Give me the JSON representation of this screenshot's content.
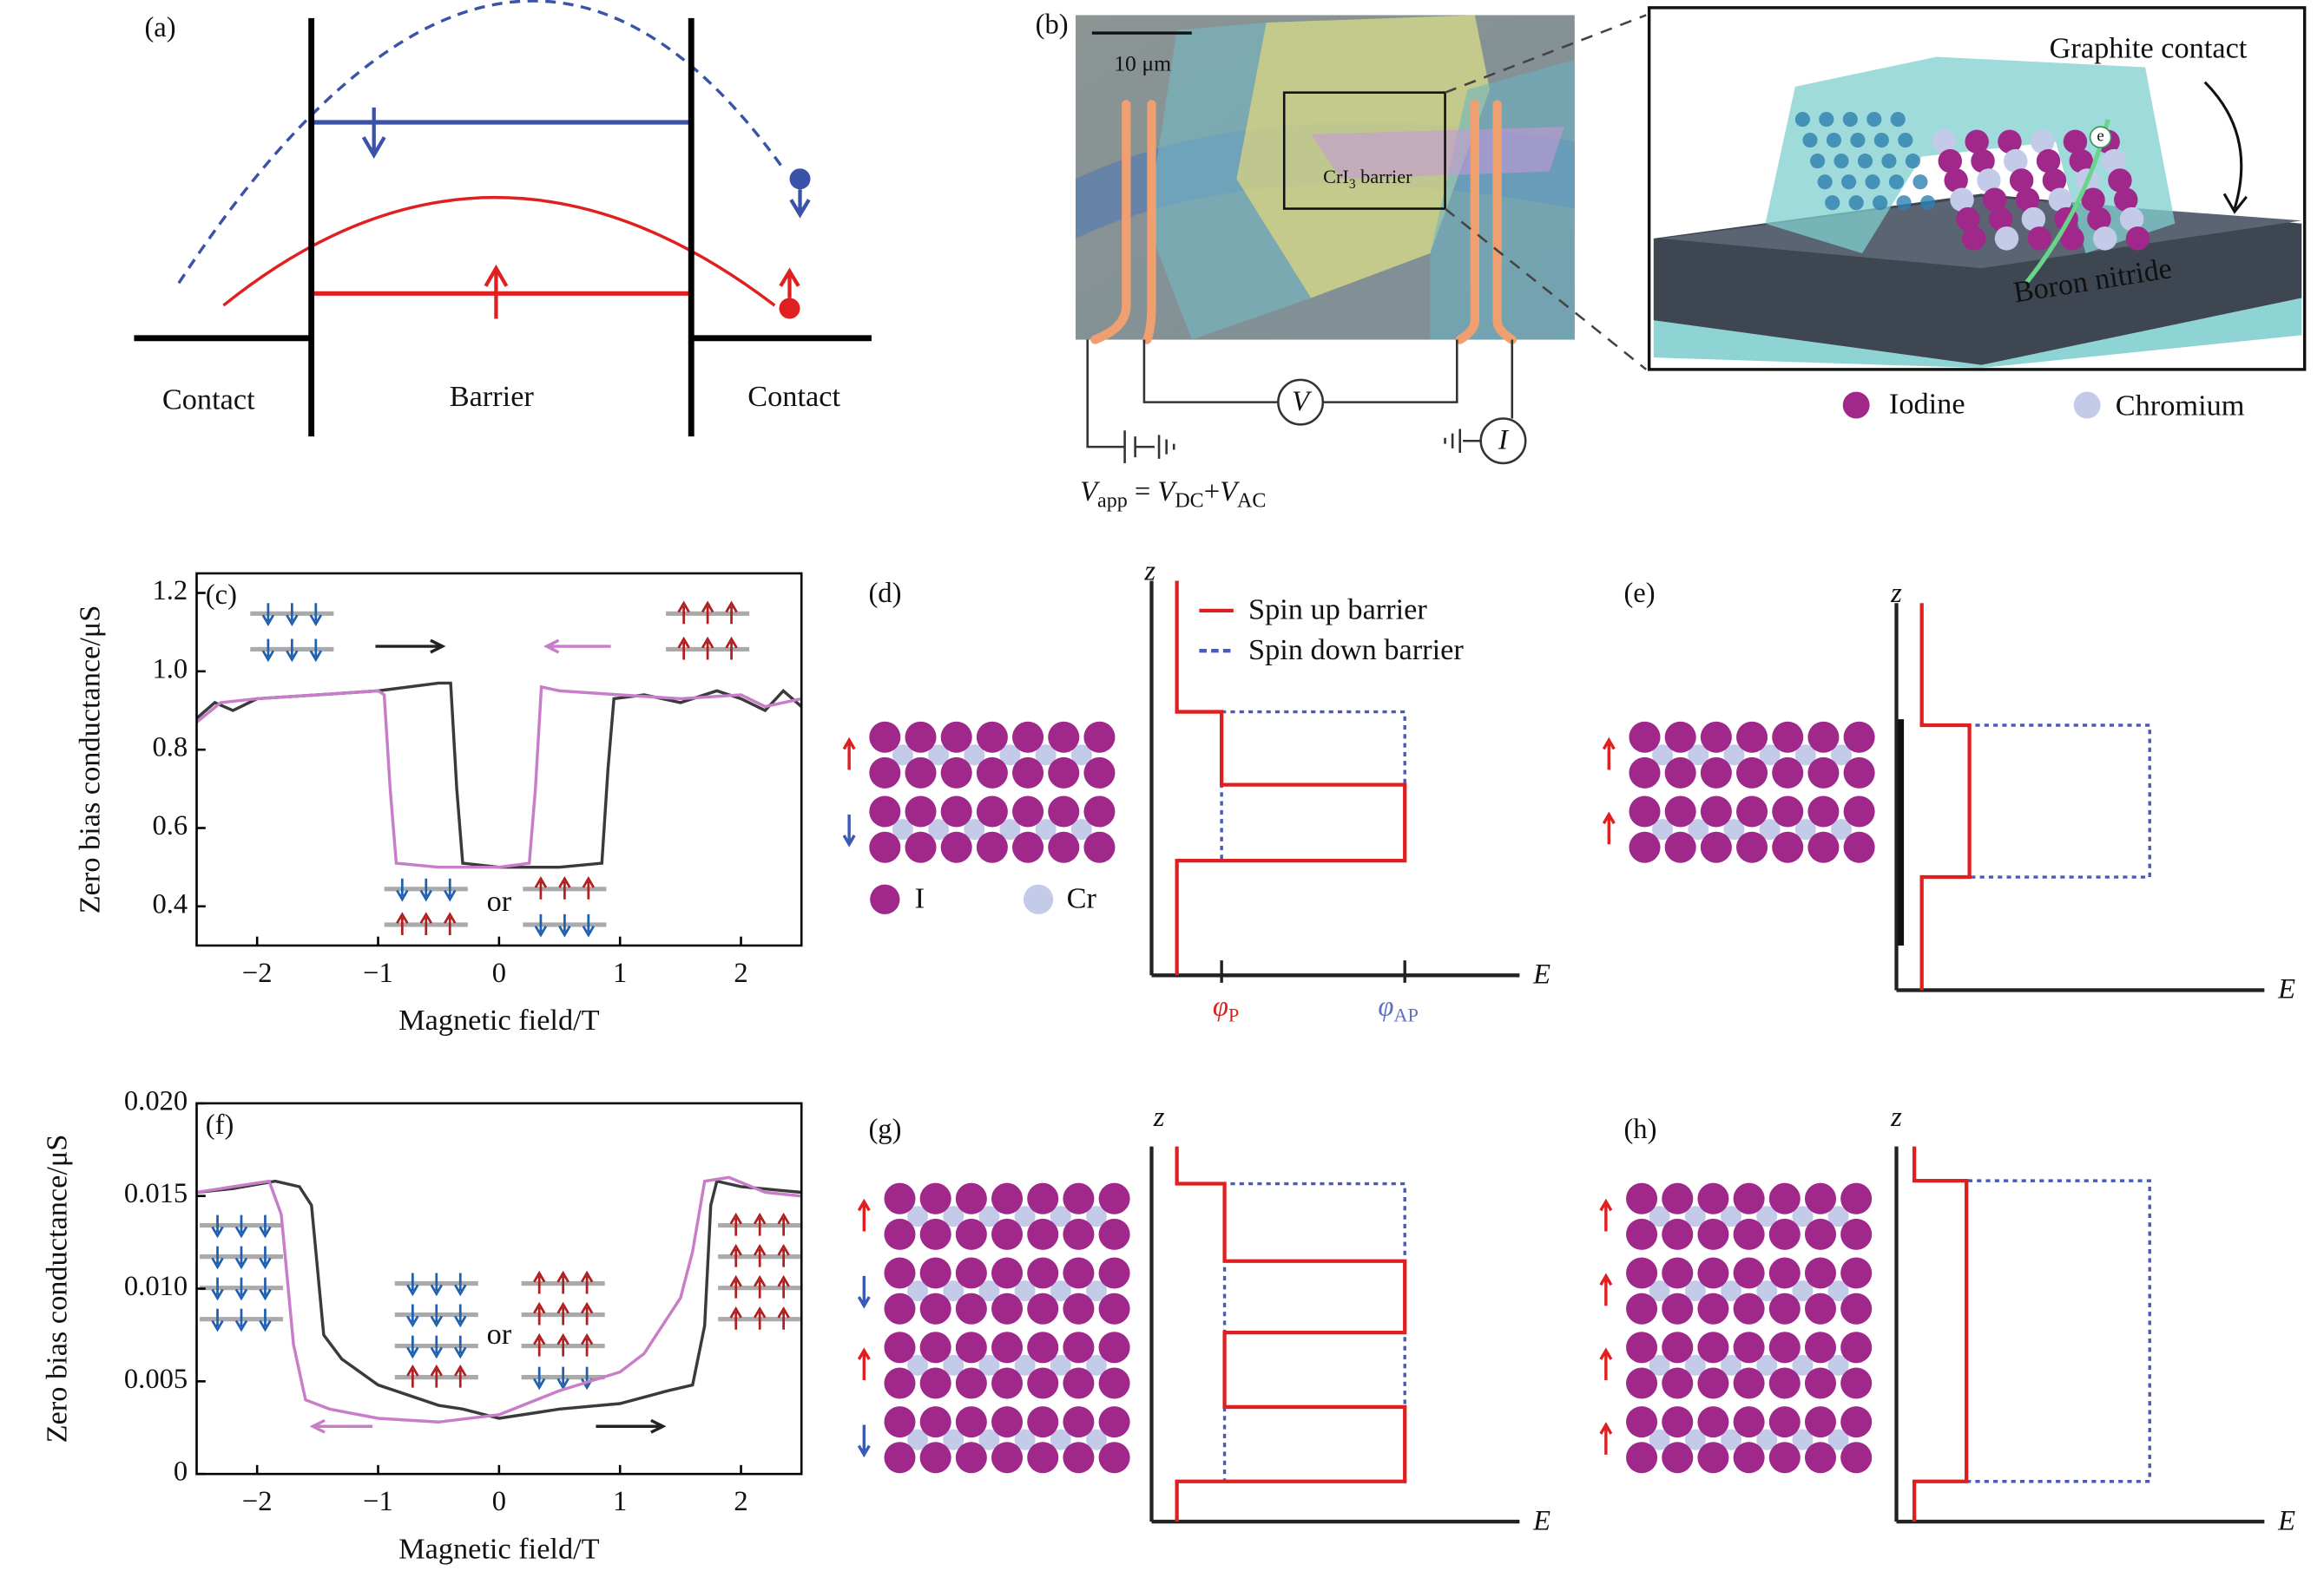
{
  "chart_data": [
    {
      "type": "line",
      "panel_label": "(c)",
      "ylabel": "Zero bias conductance/μS",
      "xlabel": "Magnetic field/T",
      "xlim": [
        -2.5,
        2.5
      ],
      "ylim": [
        0.3,
        1.25
      ],
      "xticks": [
        {
          "value": -2,
          "label": "−2"
        },
        {
          "value": -1,
          "label": "−1"
        },
        0,
        1,
        2
      ],
      "yticks": [
        {
          "value": 0.4,
          "label": "0.4"
        },
        0.6,
        0.8,
        {
          "value": 1.0,
          "label": "1.0"
        },
        1.2
      ],
      "annotations": [
        "or"
      ],
      "series": [
        {
          "color": "#3a3a3a",
          "x": [
            -2.5,
            -2.35,
            -2.2,
            -2.0,
            -1.5,
            -1.0,
            -0.5,
            -0.4,
            -0.35,
            -0.3,
            0.0,
            0.5,
            0.85,
            0.9,
            0.95,
            1.2,
            1.5,
            1.8,
            2.0,
            2.2,
            2.35,
            2.5
          ],
          "values": [
            0.88,
            0.92,
            0.9,
            0.93,
            0.94,
            0.95,
            0.97,
            0.97,
            0.7,
            0.51,
            0.5,
            0.5,
            0.51,
            0.75,
            0.93,
            0.94,
            0.92,
            0.95,
            0.93,
            0.9,
            0.95,
            0.91
          ]
        },
        {
          "color": "#c77dc7",
          "x": [
            2.5,
            2.2,
            2.0,
            1.5,
            1.0,
            0.5,
            0.35,
            0.3,
            0.25,
            0.0,
            -0.5,
            -0.85,
            -0.9,
            -0.95,
            -1.0,
            -1.5,
            -2.0,
            -2.3,
            -2.5
          ],
          "values": [
            0.93,
            0.91,
            0.94,
            0.93,
            0.94,
            0.95,
            0.96,
            0.7,
            0.51,
            0.5,
            0.5,
            0.51,
            0.7,
            0.94,
            0.95,
            0.94,
            0.93,
            0.92,
            0.87
          ]
        }
      ]
    },
    {
      "type": "line",
      "panel_label": "(f)",
      "ylabel": "Zero bias conductance/μS",
      "xlabel": "Magnetic field/T",
      "xlim": [
        -2.5,
        2.5
      ],
      "ylim": [
        0,
        0.02
      ],
      "xticks": [
        {
          "value": -2,
          "label": "−2"
        },
        {
          "value": -1,
          "label": "−1"
        },
        0,
        1,
        2
      ],
      "yticks": [
        0,
        0.005,
        {
          "value": 0.01,
          "label": "0.010"
        },
        0.015,
        {
          "value": 0.02,
          "label": "0.020"
        }
      ],
      "annotations": [
        "or"
      ],
      "series": [
        {
          "color": "#3a3a3a",
          "x": [
            -2.5,
            -2.2,
            -1.85,
            -1.65,
            -1.55,
            -1.5,
            -1.45,
            -1.3,
            -1.0,
            -0.5,
            -0.3,
            0.0,
            0.3,
            0.5,
            1.0,
            1.4,
            1.6,
            1.7,
            1.75,
            1.8,
            2.0,
            2.5
          ],
          "values": [
            0.0152,
            0.0154,
            0.0158,
            0.0155,
            0.0145,
            0.011,
            0.0075,
            0.0062,
            0.0048,
            0.0037,
            0.0035,
            0.003,
            0.0033,
            0.0035,
            0.0038,
            0.0045,
            0.0048,
            0.008,
            0.0145,
            0.0158,
            0.0155,
            0.0152
          ]
        },
        {
          "color": "#c77dc7",
          "x": [
            2.5,
            2.2,
            1.9,
            1.7,
            1.6,
            1.5,
            1.2,
            1.0,
            0.5,
            0.0,
            -0.5,
            -1.0,
            -1.4,
            -1.6,
            -1.7,
            -1.8,
            -1.9,
            -2.2,
            -2.5
          ],
          "values": [
            0.015,
            0.0152,
            0.016,
            0.0158,
            0.012,
            0.0095,
            0.0065,
            0.0055,
            0.0045,
            0.0032,
            0.0028,
            0.003,
            0.0035,
            0.004,
            0.007,
            0.014,
            0.0158,
            0.0155,
            0.0152
          ]
        }
      ]
    }
  ],
  "panel_a": {
    "label": "(a)",
    "contact_left": "Contact",
    "barrier": "Barrier",
    "contact_right": "Contact"
  },
  "panel_b": {
    "label": "(b)",
    "scale_bar": "10 μm",
    "barrier": [
      "CrI",
      "3",
      " barrier"
    ],
    "voltmeter": "V",
    "ammeter": "I",
    "equation": [
      "V",
      "app",
      " = ",
      "V",
      "DC",
      "+",
      "V",
      "AC"
    ],
    "graphite": "Graphite contact",
    "boron_nitride": "Boron nitride",
    "electron": "e",
    "iodine": "Iodine",
    "chromium": "Chromium"
  },
  "panel_d": {
    "label": "(d)",
    "z": "z",
    "E": "E",
    "legend_up": "Spin up barrier",
    "legend_down": "Spin down barrier",
    "atom_i": "I",
    "atom_cr": "Cr",
    "phi_p": [
      "φ",
      "P"
    ],
    "phi_ap": [
      "φ",
      "AP"
    ]
  },
  "panel_e": {
    "label": "(e)",
    "z": "z",
    "E": "E"
  },
  "panel_g": {
    "label": "(g)",
    "z": "z",
    "E": "E"
  },
  "panel_h": {
    "label": "(h)",
    "z": "z",
    "E": "E"
  }
}
